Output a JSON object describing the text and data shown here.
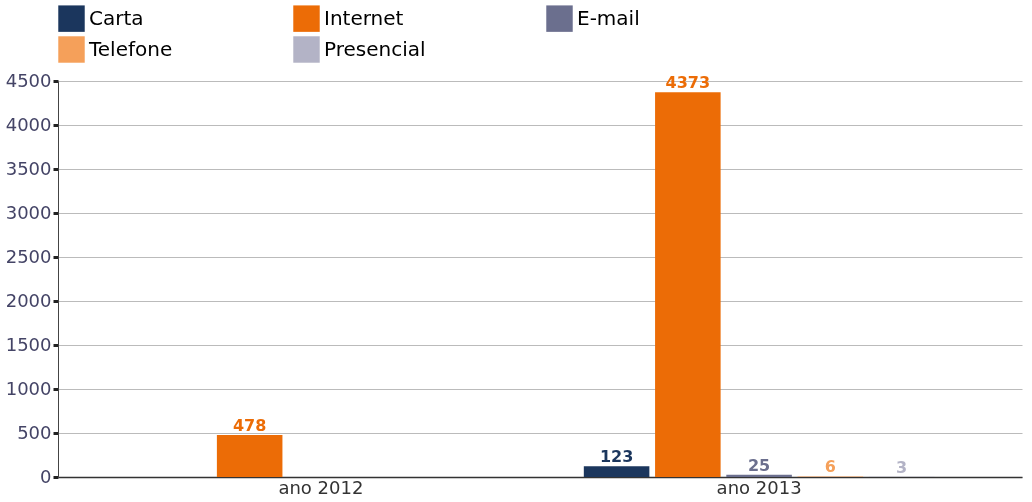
{
  "chart_data": {
    "type": "bar",
    "categories": [
      "ano 2012",
      "ano 2013"
    ],
    "series": [
      {
        "name": "Carta",
        "color": "#1b365d",
        "values": [
          null,
          123
        ],
        "value_labels": [
          null,
          "123"
        ]
      },
      {
        "name": "Internet",
        "color": "#ec6c06",
        "values": [
          478,
          4373
        ],
        "value_labels": [
          "478",
          "4373"
        ]
      },
      {
        "name": "E-mail",
        "color": "#6b6f8e",
        "values": [
          null,
          25
        ],
        "value_labels": [
          null,
          "25"
        ]
      },
      {
        "name": "Telefone",
        "color": "#f5a05a",
        "values": [
          null,
          6
        ],
        "value_labels": [
          null,
          "6"
        ]
      },
      {
        "name": "Presencial",
        "color": "#b3b3c6",
        "values": [
          null,
          3
        ],
        "value_labels": [
          null,
          "3"
        ]
      }
    ],
    "ylim": [
      0,
      4500
    ],
    "yticks": [
      0,
      500,
      1000,
      1500,
      2000,
      2500,
      3000,
      3500,
      4000,
      4500
    ],
    "grid": "y",
    "legend": "top"
  }
}
